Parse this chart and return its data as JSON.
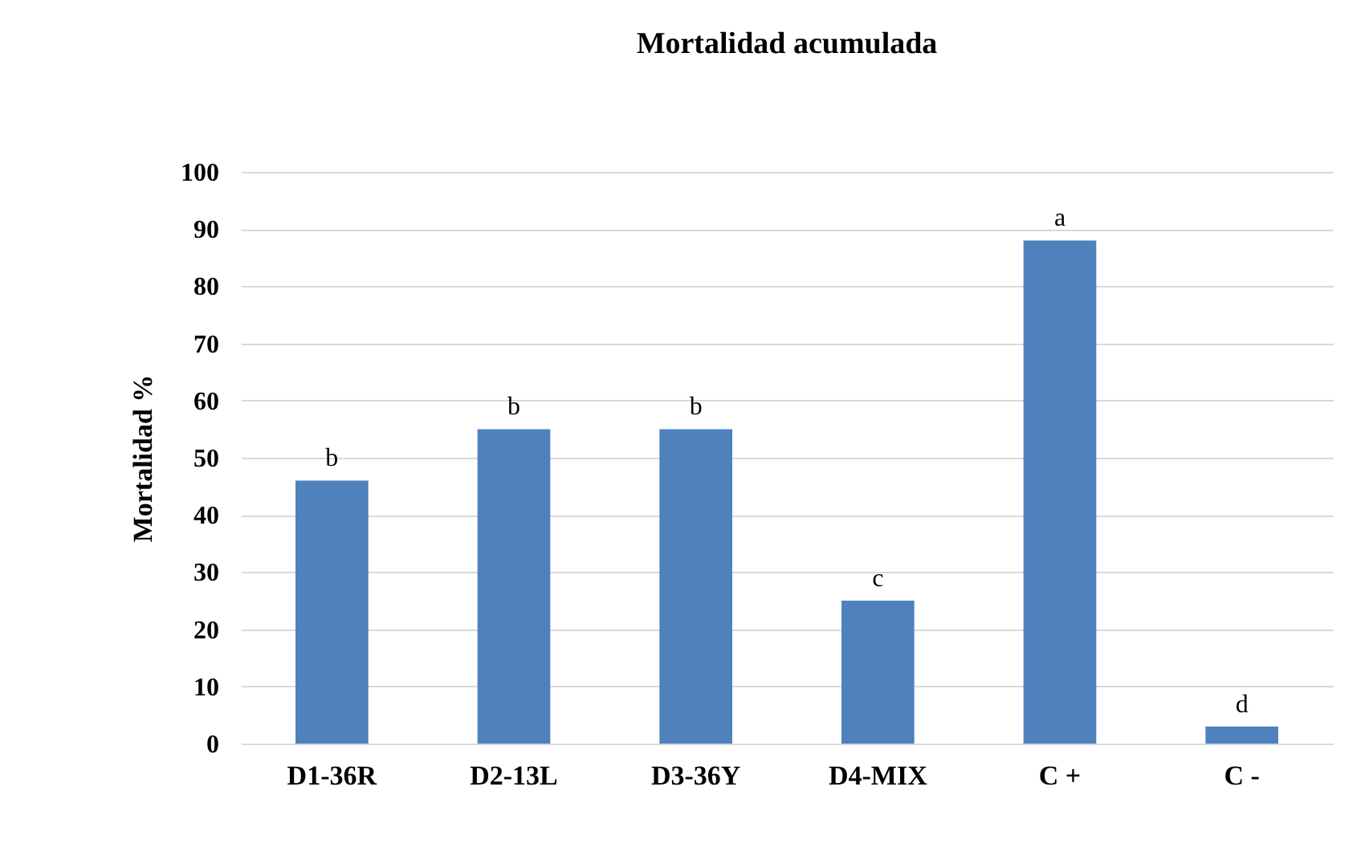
{
  "chart_data": {
    "type": "bar",
    "title": "Mortalidad acumulada",
    "ylabel": "Mortalidad %",
    "categories": [
      "D1-36R",
      "D2-13L",
      "D3-36Y",
      "D4-MIX",
      "C +",
      "C -"
    ],
    "values": [
      46,
      55,
      55,
      25,
      88,
      3
    ],
    "color": "#4f81bd",
    "ylim": [
      0,
      100
    ],
    "yticks": [
      0,
      10,
      20,
      30,
      40,
      50,
      60,
      70,
      80,
      90,
      100
    ],
    "grid": "y",
    "annotations": [
      {
        "text": "b",
        "x": "D1-36R",
        "y": 46
      },
      {
        "text": "b",
        "x": "D2-13L",
        "y": 55
      },
      {
        "text": "b",
        "x": "D3-36Y",
        "y": 55
      },
      {
        "text": "c",
        "x": "D4-MIX",
        "y": 25
      },
      {
        "text": "a",
        "x": "C +",
        "y": 88
      },
      {
        "text": "d",
        "x": "C -",
        "y": 3
      }
    ]
  }
}
